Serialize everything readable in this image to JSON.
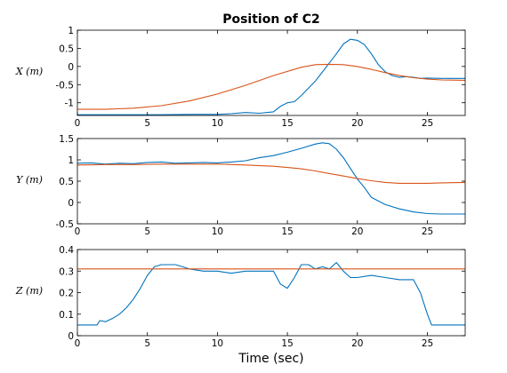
{
  "chart_data": [
    {
      "type": "line",
      "title": "Position of C2",
      "xlabel": "",
      "ylabel": "X (m)",
      "xlim": [
        0,
        27.7
      ],
      "ylim": [
        -1.35,
        1.0
      ],
      "xticks": [
        "0",
        "5",
        "10",
        "15",
        "20",
        "25"
      ],
      "yticks": [
        "1",
        "0.5",
        "0",
        "-0.5",
        "-1"
      ],
      "series": [
        {
          "color": "#0072BD",
          "x": [
            0,
            2,
            4,
            6,
            8,
            10,
            11,
            12,
            13,
            14,
            14.5,
            15,
            15.5,
            16,
            16.5,
            17,
            17.5,
            18,
            18.5,
            19,
            19.5,
            20,
            20.5,
            21,
            21.5,
            22,
            22.5,
            23,
            23.5,
            24,
            24.5,
            25,
            26,
            27.7
          ],
          "y": [
            -1.33,
            -1.33,
            -1.33,
            -1.33,
            -1.32,
            -1.32,
            -1.3,
            -1.27,
            -1.29,
            -1.25,
            -1.1,
            -1.0,
            -0.97,
            -0.8,
            -0.6,
            -0.4,
            -0.15,
            0.1,
            0.35,
            0.62,
            0.75,
            0.72,
            0.6,
            0.35,
            0.05,
            -0.15,
            -0.25,
            -0.3,
            -0.28,
            -0.3,
            -0.33,
            -0.32,
            -0.33,
            -0.33
          ]
        },
        {
          "color": "#D95319",
          "x": [
            0,
            2,
            4,
            6,
            8,
            10,
            12,
            14,
            16,
            17,
            18,
            19,
            20,
            21,
            22,
            23,
            24,
            25,
            26,
            27.7
          ],
          "y": [
            -1.18,
            -1.18,
            -1.15,
            -1.08,
            -0.95,
            -0.76,
            -0.52,
            -0.25,
            -0.02,
            0.05,
            0.06,
            0.05,
            0.0,
            -0.08,
            -0.17,
            -0.25,
            -0.31,
            -0.35,
            -0.37,
            -0.38
          ]
        }
      ]
    },
    {
      "type": "line",
      "title": "",
      "xlabel": "",
      "ylabel": "Y (m)",
      "xlim": [
        0,
        27.7
      ],
      "ylim": [
        -0.5,
        1.5
      ],
      "xticks": [
        "0",
        "5",
        "10",
        "15",
        "20",
        "25"
      ],
      "yticks": [
        "1.5",
        "1",
        "0.5",
        "0",
        "-0.5"
      ],
      "series": [
        {
          "color": "#0072BD",
          "x": [
            0,
            1,
            2,
            3,
            4,
            5,
            6,
            7,
            8,
            9,
            10,
            11,
            12,
            13,
            14,
            15,
            16,
            17,
            17.5,
            18,
            18.5,
            19,
            19.5,
            20,
            20.5,
            21,
            22,
            23,
            24,
            25,
            26,
            27.7
          ],
          "y": [
            0.92,
            0.93,
            0.9,
            0.92,
            0.91,
            0.94,
            0.95,
            0.92,
            0.93,
            0.94,
            0.93,
            0.95,
            0.98,
            1.05,
            1.1,
            1.18,
            1.27,
            1.37,
            1.4,
            1.38,
            1.25,
            1.05,
            0.8,
            0.55,
            0.35,
            0.12,
            -0.05,
            -0.15,
            -0.22,
            -0.26,
            -0.27,
            -0.27
          ]
        },
        {
          "color": "#D95319",
          "x": [
            0,
            2,
            4,
            6,
            8,
            10,
            12,
            14,
            15,
            16,
            17,
            18,
            19,
            20,
            21,
            22,
            23,
            24,
            25,
            26,
            27.7
          ],
          "y": [
            0.88,
            0.89,
            0.89,
            0.9,
            0.9,
            0.9,
            0.88,
            0.85,
            0.82,
            0.79,
            0.74,
            0.68,
            0.62,
            0.56,
            0.51,
            0.47,
            0.45,
            0.45,
            0.45,
            0.46,
            0.47
          ]
        }
      ]
    },
    {
      "type": "line",
      "title": "",
      "xlabel": "Time (sec)",
      "ylabel": "Z (m)",
      "xlim": [
        0,
        27.7
      ],
      "ylim": [
        0,
        0.4
      ],
      "xticks": [
        "0",
        "5",
        "10",
        "15",
        "20",
        "25"
      ],
      "yticks": [
        "0.4",
        "0.3",
        "0.2",
        "0.1",
        "0"
      ],
      "series": [
        {
          "color": "#0072BD",
          "x": [
            0,
            1.4,
            1.6,
            2,
            2.5,
            3,
            3.5,
            4,
            4.5,
            5,
            5.5,
            6,
            6.5,
            7,
            7.5,
            8,
            9,
            10,
            11,
            12,
            13,
            14,
            14.5,
            15,
            15.5,
            16,
            16.5,
            17,
            17.5,
            18,
            18.5,
            19,
            19.5,
            20,
            21,
            22,
            23,
            24,
            24.5,
            25,
            25.3,
            26,
            27.7
          ],
          "y": [
            0.05,
            0.05,
            0.07,
            0.065,
            0.08,
            0.1,
            0.13,
            0.17,
            0.22,
            0.28,
            0.32,
            0.33,
            0.33,
            0.33,
            0.32,
            0.31,
            0.3,
            0.3,
            0.29,
            0.3,
            0.3,
            0.3,
            0.24,
            0.22,
            0.27,
            0.33,
            0.33,
            0.31,
            0.32,
            0.31,
            0.34,
            0.3,
            0.27,
            0.27,
            0.28,
            0.27,
            0.26,
            0.26,
            0.2,
            0.1,
            0.05,
            0.05,
            0.05
          ]
        },
        {
          "color": "#D95319",
          "x": [
            0,
            27.7
          ],
          "y": [
            0.31,
            0.31
          ]
        }
      ]
    }
  ]
}
